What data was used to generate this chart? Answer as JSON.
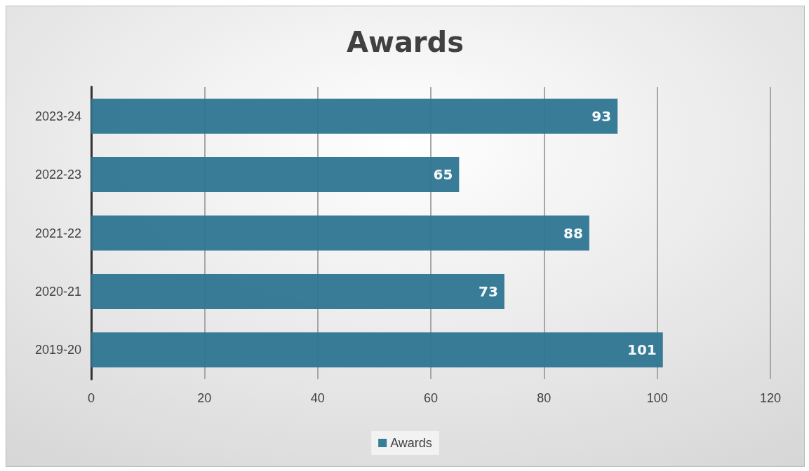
{
  "chart_data": {
    "type": "bar",
    "title": "Awards",
    "orientation": "horizontal",
    "categories": [
      "2023-24",
      "2022-23",
      "2021-22",
      "2020-21",
      "2019-20"
    ],
    "series": [
      {
        "name": "Awards",
        "color": "#2e7591",
        "values": [
          93,
          65,
          88,
          73,
          101
        ]
      }
    ],
    "xlim": [
      0,
      120
    ],
    "xticks": [
      0,
      20,
      40,
      60,
      80,
      100,
      120
    ],
    "grid": "x",
    "legend": "bottom",
    "data_labels": true
  }
}
